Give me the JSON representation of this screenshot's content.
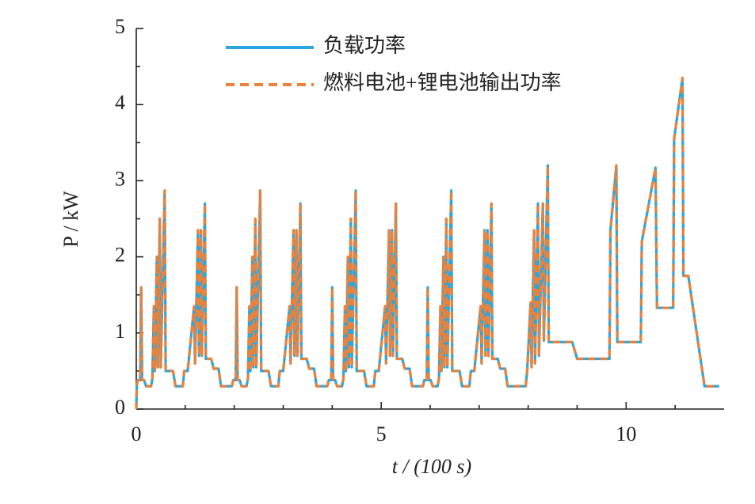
{
  "chart_data": {
    "type": "line",
    "xlabel": "t / (100 s)",
    "ylabel": "P / kW",
    "xlim": [
      0,
      12
    ],
    "ylim": [
      0,
      5
    ],
    "xticks": [
      0,
      5,
      10
    ],
    "yticks": [
      0,
      1,
      2,
      3,
      4,
      5
    ],
    "xminorticks": [
      1,
      2,
      3,
      4,
      6,
      7,
      8,
      9,
      11
    ],
    "yminorticks": [
      0.5,
      1.5,
      2.5,
      3.5,
      4.5
    ],
    "grid": false,
    "legend": "upper center",
    "x": [
      0,
      0.01,
      0.03,
      0.08,
      0.1,
      0.12,
      0.16,
      0.2,
      0.3,
      0.33,
      0.36,
      0.38,
      0.42,
      0.44,
      0.48,
      0.5,
      0.58,
      0.6,
      0.75,
      0.8,
      0.95,
      0.98,
      1.05,
      1.18,
      1.2,
      1.26,
      1.28,
      1.32,
      1.34,
      1.4,
      1.42,
      1.53,
      1.58,
      1.68,
      1.73,
      1.93,
      1.95,
      1.98,
      2.03,
      2.05,
      2.07,
      2.11,
      2.15,
      2.25,
      2.28,
      2.31,
      2.33,
      2.37,
      2.39,
      2.43,
      2.45,
      2.53,
      2.55,
      2.7,
      2.75,
      2.9,
      2.93,
      3.0,
      3.13,
      3.15,
      3.21,
      3.23,
      3.27,
      3.29,
      3.35,
      3.37,
      3.48,
      3.53,
      3.63,
      3.68,
      3.88,
      3.9,
      3.93,
      3.98,
      4.0,
      4.02,
      4.06,
      4.1,
      4.2,
      4.23,
      4.26,
      4.28,
      4.32,
      4.34,
      4.38,
      4.4,
      4.48,
      4.5,
      4.65,
      4.7,
      4.85,
      4.88,
      4.95,
      5.08,
      5.1,
      5.16,
      5.18,
      5.22,
      5.24,
      5.3,
      5.32,
      5.43,
      5.48,
      5.58,
      5.63,
      5.83,
      5.85,
      5.88,
      5.93,
      5.95,
      5.97,
      6.01,
      6.05,
      6.15,
      6.18,
      6.21,
      6.23,
      6.27,
      6.29,
      6.33,
      6.35,
      6.43,
      6.45,
      6.6,
      6.65,
      6.8,
      6.83,
      6.9,
      7.03,
      7.05,
      7.11,
      7.13,
      7.17,
      7.19,
      7.25,
      7.27,
      7.38,
      7.43,
      7.53,
      7.58,
      7.78,
      7.95,
      7.98,
      8.05,
      8.07,
      8.12,
      8.14,
      8.2,
      8.22,
      8.3,
      8.32,
      8.4,
      8.42,
      8.9,
      9.0,
      9.66,
      9.68,
      9.8,
      9.82,
      10.3,
      10.32,
      10.6,
      10.63,
      10.96,
      10.98,
      11.15,
      11.17,
      11.27,
      11.6,
      11.9
    ],
    "series": [
      {
        "name": "负载功率",
        "color": "#2aa7df",
        "dashed": false,
        "values": [
          0,
          0.3,
          0.38,
          0.38,
          1.6,
          0.38,
          0.38,
          0.3,
          0.3,
          0.4,
          1.35,
          0.5,
          2.0,
          0.55,
          2.5,
          0.55,
          2.87,
          0.5,
          0.5,
          0.3,
          0.3,
          0.5,
          0.5,
          1.35,
          0.6,
          2.35,
          0.7,
          2.35,
          0.7,
          2.7,
          0.66,
          0.66,
          0.53,
          0.53,
          0.3,
          0.3,
          0.3,
          0.38,
          0.38,
          1.6,
          0.38,
          0.38,
          0.3,
          0.3,
          0.4,
          1.35,
          0.5,
          2.0,
          0.55,
          2.5,
          0.55,
          2.87,
          0.5,
          0.5,
          0.3,
          0.3,
          0.5,
          0.5,
          1.35,
          0.6,
          2.35,
          0.7,
          2.35,
          0.7,
          2.7,
          0.66,
          0.66,
          0.53,
          0.53,
          0.3,
          0.3,
          0.3,
          0.38,
          0.38,
          1.6,
          0.38,
          0.38,
          0.3,
          0.3,
          0.4,
          1.35,
          0.5,
          2.0,
          0.55,
          2.5,
          0.55,
          2.87,
          0.5,
          0.5,
          0.3,
          0.3,
          0.5,
          0.5,
          1.35,
          0.6,
          2.35,
          0.7,
          2.35,
          0.7,
          2.7,
          0.66,
          0.66,
          0.53,
          0.53,
          0.3,
          0.3,
          0.3,
          0.38,
          0.38,
          1.6,
          0.38,
          0.38,
          0.3,
          0.3,
          0.4,
          1.35,
          0.5,
          2.0,
          0.55,
          2.5,
          0.55,
          2.87,
          0.5,
          0.5,
          0.3,
          0.3,
          0.5,
          0.5,
          1.35,
          0.6,
          2.35,
          0.7,
          2.35,
          0.7,
          2.7,
          0.66,
          0.66,
          0.53,
          0.53,
          0.3,
          0.3,
          0.3,
          0.5,
          1.4,
          0.55,
          2.35,
          0.6,
          2.7,
          0.7,
          2.7,
          0.9,
          3.2,
          0.88,
          0.88,
          0.66,
          0.66,
          2.35,
          3.2,
          0.88,
          0.88,
          2.2,
          3.17,
          1.33,
          1.33,
          3.55,
          4.35,
          1.75,
          1.75,
          0.3,
          0.3
        ]
      },
      {
        "name": "燃料电池+锂电池输出功率",
        "color": "#e8823c",
        "dashed": true,
        "values": [
          0,
          0.3,
          0.38,
          0.38,
          1.6,
          0.38,
          0.38,
          0.3,
          0.3,
          0.4,
          1.35,
          0.5,
          2.0,
          0.55,
          2.5,
          0.55,
          2.87,
          0.5,
          0.5,
          0.3,
          0.3,
          0.5,
          0.5,
          1.35,
          0.6,
          2.35,
          0.7,
          2.35,
          0.7,
          2.7,
          0.66,
          0.66,
          0.53,
          0.53,
          0.3,
          0.3,
          0.3,
          0.38,
          0.38,
          1.6,
          0.38,
          0.38,
          0.3,
          0.3,
          0.4,
          1.35,
          0.5,
          2.0,
          0.55,
          2.5,
          0.55,
          2.87,
          0.5,
          0.5,
          0.3,
          0.3,
          0.5,
          0.5,
          1.35,
          0.6,
          2.35,
          0.7,
          2.35,
          0.7,
          2.7,
          0.66,
          0.66,
          0.53,
          0.53,
          0.3,
          0.3,
          0.3,
          0.38,
          0.38,
          1.6,
          0.38,
          0.38,
          0.3,
          0.3,
          0.4,
          1.35,
          0.5,
          2.0,
          0.55,
          2.5,
          0.55,
          2.87,
          0.5,
          0.5,
          0.3,
          0.3,
          0.5,
          0.5,
          1.35,
          0.6,
          2.35,
          0.7,
          2.35,
          0.7,
          2.7,
          0.66,
          0.66,
          0.53,
          0.53,
          0.3,
          0.3,
          0.3,
          0.38,
          0.38,
          1.6,
          0.38,
          0.38,
          0.3,
          0.3,
          0.4,
          1.35,
          0.5,
          2.0,
          0.55,
          2.5,
          0.55,
          2.87,
          0.5,
          0.5,
          0.3,
          0.3,
          0.5,
          0.5,
          1.35,
          0.6,
          2.35,
          0.7,
          2.35,
          0.7,
          2.7,
          0.66,
          0.66,
          0.53,
          0.53,
          0.3,
          0.3,
          0.3,
          0.5,
          1.4,
          0.55,
          2.35,
          0.6,
          2.7,
          0.7,
          2.7,
          0.9,
          3.2,
          0.88,
          0.88,
          0.66,
          0.66,
          2.35,
          3.2,
          0.88,
          0.88,
          2.2,
          3.17,
          1.33,
          1.33,
          3.55,
          4.35,
          1.75,
          1.75,
          0.3,
          0.3
        ]
      }
    ]
  }
}
